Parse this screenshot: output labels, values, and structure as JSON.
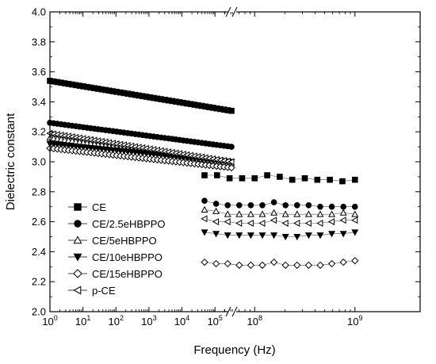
{
  "chart_data": {
    "type": "scatter",
    "xlabel": "Frequency (Hz)",
    "ylabel": "Dielectric constant",
    "ylim": [
      2.0,
      4.0
    ],
    "x_scale": "log",
    "x_axis_break": true,
    "grid": false,
    "legend_position": "bottom-left",
    "x_tick_labels": [
      {
        "exp": 0,
        "text": "10",
        "sup": "0"
      },
      {
        "exp": 1,
        "text": "10",
        "sup": "1"
      },
      {
        "exp": 2,
        "text": "10",
        "sup": "2"
      },
      {
        "exp": 3,
        "text": "10",
        "sup": "3"
      },
      {
        "exp": 4,
        "text": "10",
        "sup": "4"
      },
      {
        "exp": 5,
        "text": "10",
        "sup": "5"
      },
      {
        "exp": 8,
        "text": "10",
        "sup": "8"
      },
      {
        "exp": 9,
        "text": "10",
        "sup": "9"
      }
    ],
    "y_tick_labels": [
      "2.0",
      "2.2",
      "2.4",
      "2.6",
      "2.8",
      "3.0",
      "3.2",
      "3.4",
      "3.6",
      "3.8",
      "4.0"
    ],
    "series": [
      {
        "name": "CE",
        "marker": "square-filled",
        "low": {
          "y_start": 3.54,
          "y_end": 3.34
        },
        "high": {
          "y": [
            2.91,
            2.91,
            2.89,
            2.89,
            2.89,
            2.91,
            2.9,
            2.88,
            2.89,
            2.88,
            2.88,
            2.87,
            2.88
          ]
        }
      },
      {
        "name": "CE/2.5eHBPPO",
        "marker": "circle-filled",
        "low": {
          "y_start": 3.26,
          "y_end": 3.1
        },
        "high": {
          "y": [
            2.74,
            2.72,
            2.71,
            2.71,
            2.71,
            2.71,
            2.73,
            2.71,
            2.71,
            2.71,
            2.7,
            2.7,
            2.7,
            2.7
          ]
        }
      },
      {
        "name": "CE/5eHBPPO",
        "marker": "triangle-up-open",
        "low": {
          "y_start": 3.16,
          "y_end": 2.99
        },
        "high": {
          "y": [
            2.68,
            2.67,
            2.65,
            2.65,
            2.65,
            2.65,
            2.66,
            2.65,
            2.65,
            2.65,
            2.65,
            2.65,
            2.66,
            2.65
          ]
        }
      },
      {
        "name": "CE/10eHBPPO",
        "marker": "triangle-down-filled",
        "low": {
          "y_start": 3.12,
          "y_end": 3.0
        },
        "high": {
          "y": [
            2.53,
            2.52,
            2.51,
            2.51,
            2.51,
            2.51,
            2.51,
            2.5,
            2.5,
            2.51,
            2.51,
            2.52,
            2.52,
            2.53
          ]
        }
      },
      {
        "name": "CE/15eHBPPO",
        "marker": "diamond-open",
        "low": {
          "y_start": 3.09,
          "y_end": 2.96
        },
        "high": {
          "y": [
            2.33,
            2.32,
            2.32,
            2.31,
            2.31,
            2.31,
            2.33,
            2.31,
            2.31,
            2.31,
            2.31,
            2.32,
            2.33,
            2.34
          ]
        }
      },
      {
        "name": "p-CE",
        "marker": "triangle-left-open",
        "low": {
          "y_start": 3.19,
          "y_end": 3.0
        },
        "high": {
          "y": [
            2.62,
            2.6,
            2.6,
            2.59,
            2.59,
            2.59,
            2.61,
            2.59,
            2.59,
            2.59,
            2.59,
            2.6,
            2.61,
            2.61
          ]
        }
      }
    ]
  }
}
